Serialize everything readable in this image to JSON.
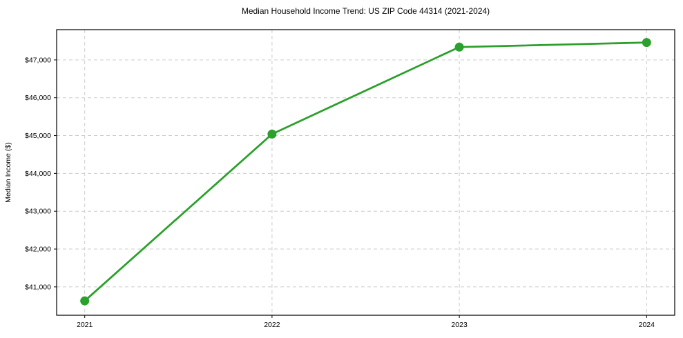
{
  "chart_data": {
    "type": "line",
    "title": "Median Household Income Trend: US ZIP Code 44314 (2021-2024)",
    "xlabel": "",
    "ylabel": "Median Income ($)",
    "x": [
      2021,
      2022,
      2023,
      2024
    ],
    "series": [
      {
        "name": "Median Household Income",
        "values": [
          40630,
          45040,
          47340,
          47460
        ]
      }
    ],
    "x_tick_labels": [
      "2021",
      "2022",
      "2023",
      "2024"
    ],
    "y_ticks": [
      41000,
      42000,
      43000,
      44000,
      45000,
      46000,
      47000
    ],
    "y_tick_labels": [
      "$41,000",
      "$42,000",
      "$43,000",
      "$44,000",
      "$45,000",
      "$46,000",
      "$47,000"
    ],
    "xlim": [
      2020.85,
      2024.15
    ],
    "ylim": [
      40250,
      47800
    ],
    "grid": true,
    "grid_style": "dashed",
    "legend_position": "none",
    "colors": {
      "line": "#2ca02c",
      "marker": "#2ca02c",
      "grid": "#cccccc",
      "spine": "#000000",
      "text": "#000000",
      "background": "#ffffff"
    }
  }
}
